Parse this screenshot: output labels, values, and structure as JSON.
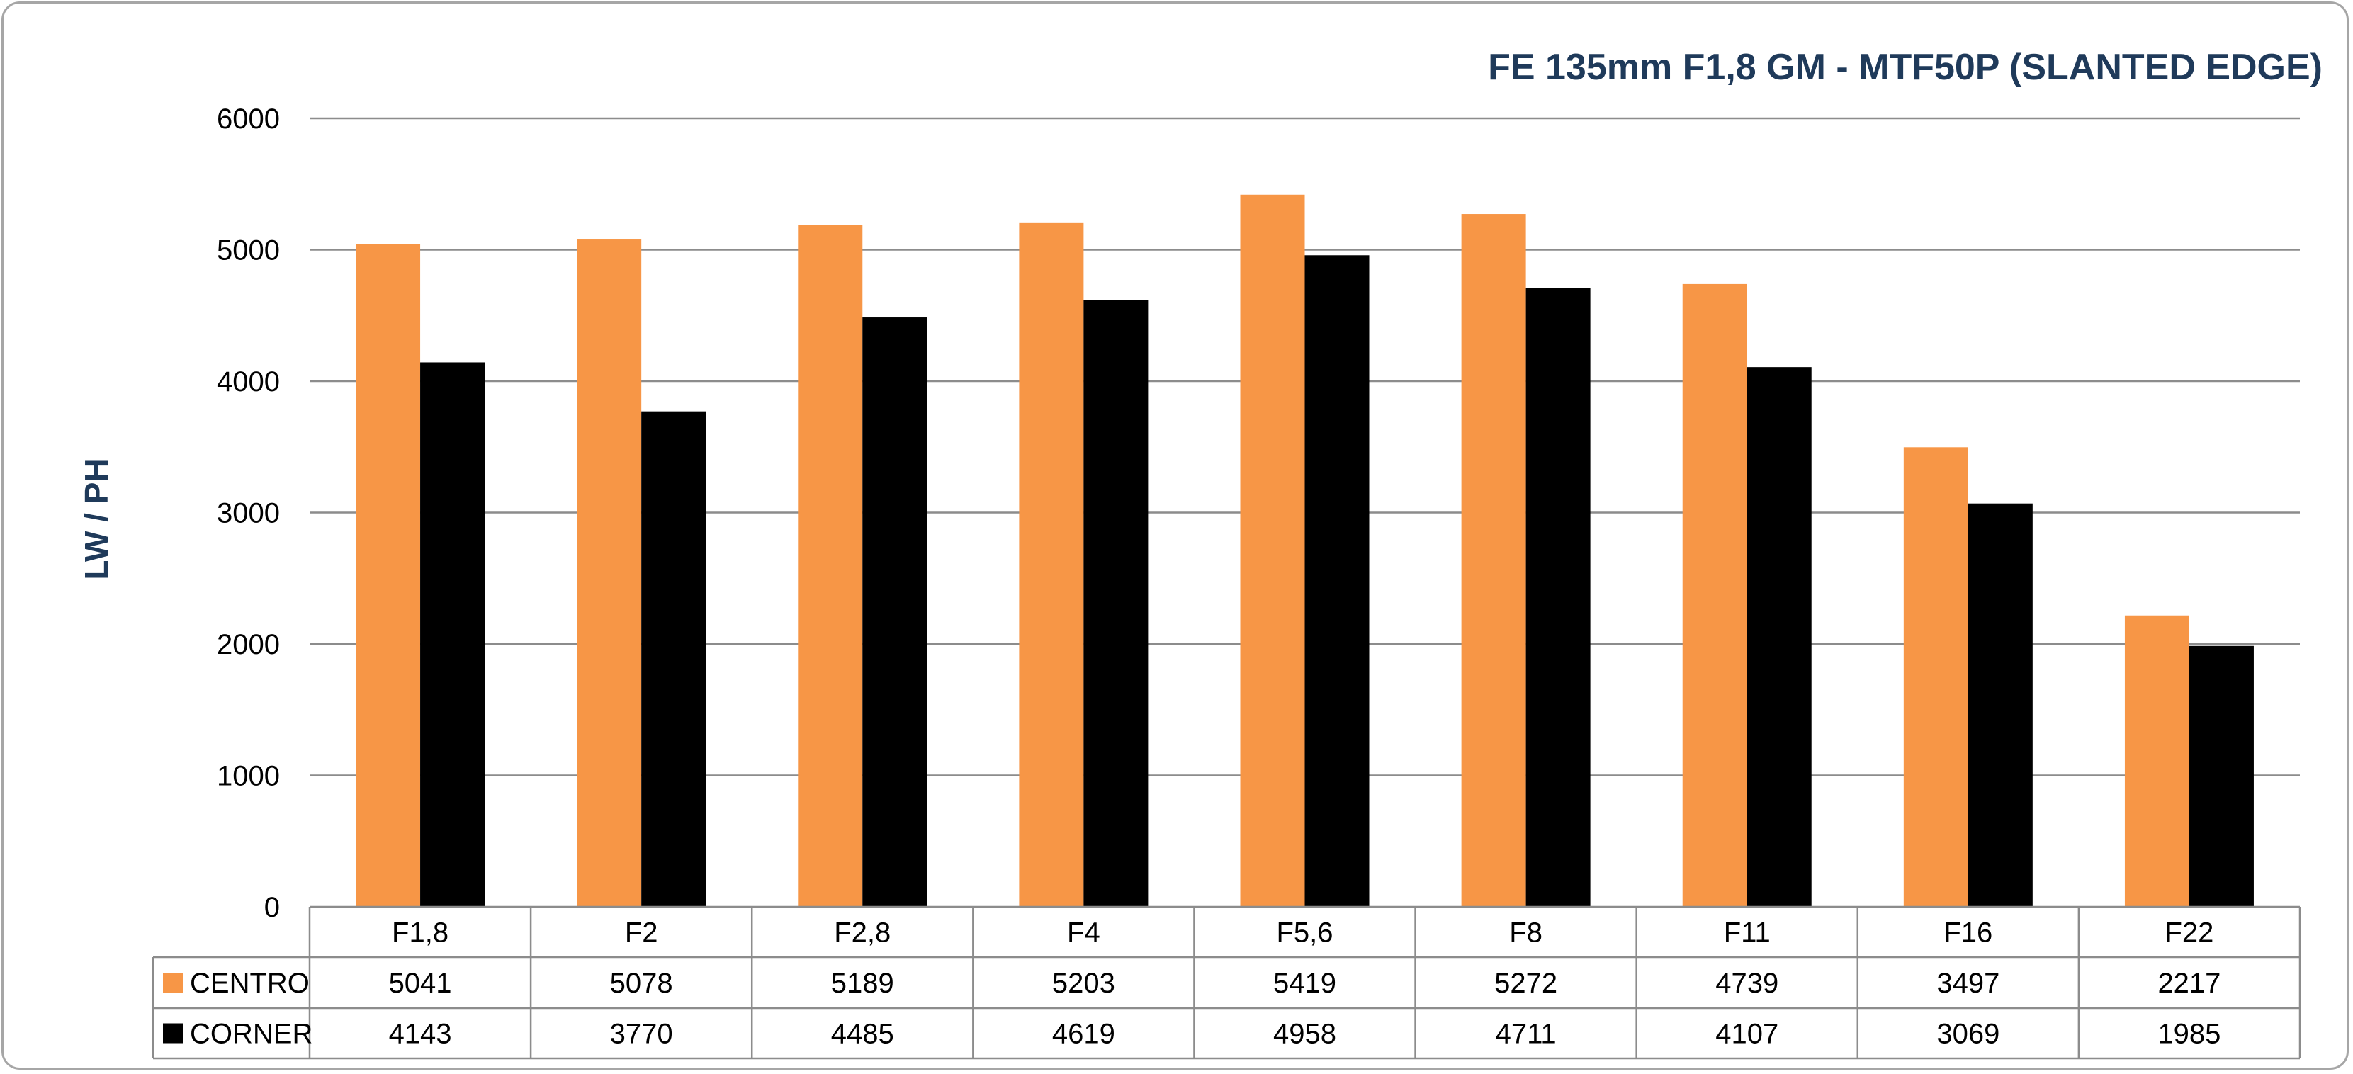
{
  "chart_data": {
    "type": "bar",
    "title": "FE 135mm F1,8 GM - MTF50P (SLANTED EDGE)",
    "ylabel": "LW / PH",
    "xlabel": "",
    "categories": [
      "F1,8",
      "F2",
      "F2,8",
      "F4",
      "F5,6",
      "F8",
      "F11",
      "F16",
      "F22"
    ],
    "series": [
      {
        "name": "CENTRO",
        "color": "#f79646",
        "values": [
          5041,
          5078,
          5189,
          5203,
          5419,
          5272,
          4739,
          3497,
          2217
        ]
      },
      {
        "name": "CORNER",
        "color": "#000000",
        "values": [
          4143,
          3770,
          4485,
          4619,
          4958,
          4711,
          4107,
          3069,
          1985
        ]
      }
    ],
    "ylim": [
      0,
      6000
    ],
    "yticks": [
      0,
      1000,
      2000,
      3000,
      4000,
      5000,
      6000
    ],
    "grid": true,
    "legend": "data-table-below"
  }
}
